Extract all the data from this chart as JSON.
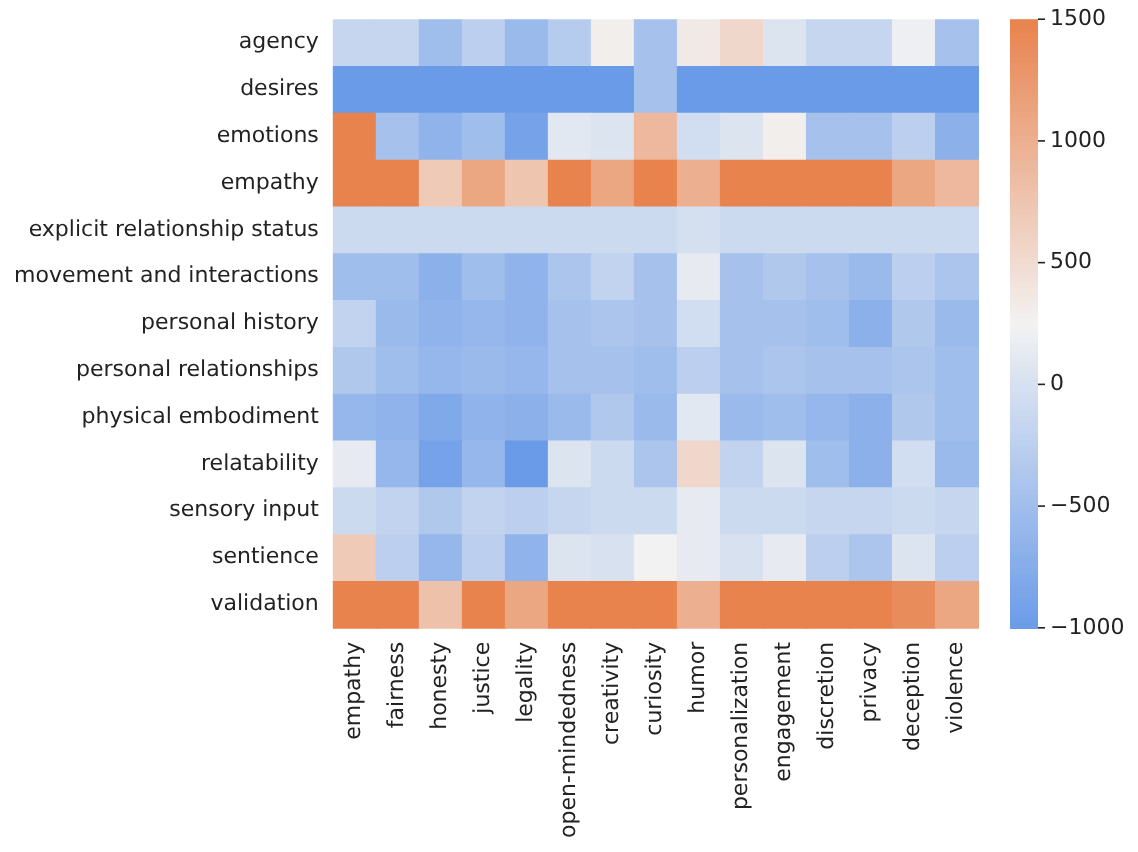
{
  "chart_data": {
    "type": "heatmap",
    "categories": [
      "empathy",
      "fairness",
      "honesty",
      "justice",
      "legality",
      "open-mindedness",
      "creativity",
      "curiosity",
      "humor",
      "personalization",
      "engagement",
      "discretion",
      "privacy",
      "deception",
      "violence"
    ],
    "y_categories": [
      "agency",
      "desires",
      "emotions",
      "empathy",
      "explicit relationship status",
      "movement and interactions",
      "personal history",
      "personal relationships",
      "physical embodiment",
      "relatability",
      "sensory input",
      "sentience",
      "validation"
    ],
    "cells": [
      [
        -150,
        -150,
        -500,
        -250,
        -550,
        -300,
        300,
        -450,
        350,
        550,
        50,
        -150,
        -150,
        200,
        -450
      ],
      [
        -1000,
        -1000,
        -1000,
        -1000,
        -1000,
        -1000,
        -1000,
        -450,
        -1000,
        -1000,
        -1000,
        -1000,
        -1000,
        -1000,
        -1000
      ],
      [
        1500,
        -450,
        -650,
        -500,
        -900,
        100,
        50,
        900,
        -50,
        50,
        300,
        -450,
        -450,
        -250,
        -700
      ],
      [
        1500,
        1500,
        700,
        1100,
        750,
        1500,
        1100,
        1500,
        1000,
        1500,
        1500,
        1500,
        1500,
        1100,
        900
      ],
      [
        -100,
        -100,
        -100,
        -100,
        -100,
        -100,
        -100,
        -100,
        -30,
        -100,
        -100,
        -100,
        -100,
        -100,
        -100
      ],
      [
        -500,
        -500,
        -700,
        -500,
        -650,
        -400,
        -200,
        -450,
        150,
        -450,
        -350,
        -450,
        -550,
        -250,
        -400
      ],
      [
        -200,
        -550,
        -650,
        -600,
        -650,
        -450,
        -400,
        -450,
        -50,
        -450,
        -450,
        -500,
        -700,
        -350,
        -550
      ],
      [
        -350,
        -500,
        -600,
        -550,
        -600,
        -450,
        -450,
        -500,
        -250,
        -450,
        -400,
        -450,
        -450,
        -400,
        -500
      ],
      [
        -600,
        -650,
        -800,
        -650,
        -700,
        -550,
        -350,
        -550,
        100,
        -550,
        -500,
        -600,
        -700,
        -350,
        -500
      ],
      [
        150,
        -600,
        -900,
        -600,
        -1000,
        50,
        -100,
        -400,
        550,
        -200,
        50,
        -500,
        -700,
        -50,
        -550
      ],
      [
        -100,
        -200,
        -350,
        -200,
        -250,
        -150,
        -100,
        -100,
        150,
        -100,
        -100,
        -150,
        -150,
        -100,
        -150
      ],
      [
        700,
        -250,
        -600,
        -250,
        -650,
        50,
        0,
        250,
        150,
        0,
        150,
        -250,
        -400,
        50,
        -250
      ],
      [
        1500,
        1500,
        800,
        1500,
        1100,
        1500,
        1500,
        1500,
        1000,
        1500,
        1500,
        1500,
        1500,
        1400,
        1100
      ]
    ],
    "clim": [
      -1000,
      1500
    ],
    "cticks": [
      {
        "value": -1000,
        "label": "−1000"
      },
      {
        "value": -500,
        "label": "−500"
      },
      0,
      500,
      1000,
      1500
    ]
  }
}
